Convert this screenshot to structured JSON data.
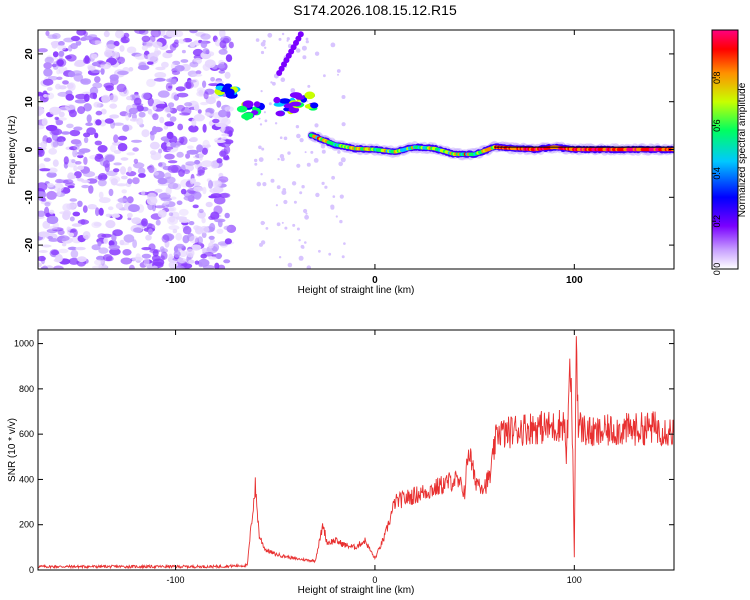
{
  "title": "S174.2026.108.15.12.R15",
  "chart_data": [
    {
      "type": "heatmap",
      "xlabel": "Height of straight line (km)",
      "ylabel": "Frequency (Hz)",
      "xlim": [
        -169,
        150
      ],
      "ylim": [
        -25,
        25
      ],
      "x_ticks": [
        -100,
        0,
        100
      ],
      "y_ticks": [
        -20,
        -10,
        0,
        10,
        20
      ],
      "colorbar": {
        "label": "Normalized spectral amplitude",
        "range": [
          0,
          1
        ],
        "ticks": [
          0.0,
          0.2,
          0.4,
          0.6,
          0.8
        ],
        "colors": [
          "#ffffff",
          "#c8a0ff",
          "#7a00ff",
          "#0000ff",
          "#00c8ff",
          "#00ff60",
          "#c8ff00",
          "#ff9000",
          "#ff0000",
          "#ff0080"
        ]
      },
      "features": {
        "noise_region_x": [
          -169,
          -72
        ],
        "dominant_track": [
          [
            -32,
            3
          ],
          [
            -20,
            1
          ],
          [
            -10,
            0.2
          ],
          [
            0,
            0
          ],
          [
            10,
            -0.5
          ],
          [
            20,
            0.5
          ],
          [
            30,
            0.2
          ],
          [
            40,
            -1
          ],
          [
            50,
            -1
          ],
          [
            60,
            0.5
          ],
          [
            80,
            0
          ],
          [
            90,
            0.5
          ],
          [
            100,
            0
          ],
          [
            150,
            0
          ]
        ],
        "high_freq_cluster": [
          [
            -75,
            12
          ],
          [
            -62,
            8
          ],
          [
            -45,
            9
          ],
          [
            -35,
            10
          ]
        ]
      }
    },
    {
      "type": "line",
      "xlabel": "Height of straight line (km)",
      "ylabel": "SNR (10 * v/v)",
      "xlim": [
        -169,
        150
      ],
      "ylim": [
        0,
        1060
      ],
      "x_ticks": [
        -100,
        0,
        100
      ],
      "y_ticks": [
        0,
        200,
        400,
        600,
        800,
        1000
      ],
      "series": [
        {
          "name": "SNR",
          "color": "#e83030",
          "x": [
            -169,
            -140,
            -110,
            -80,
            -64,
            -62,
            -60,
            -58,
            -55,
            -50,
            -45,
            -40,
            -30,
            -26,
            -24,
            -20,
            -15,
            -10,
            -5,
            0,
            5,
            10,
            20,
            30,
            40,
            45,
            47,
            50,
            55,
            58,
            60,
            62,
            65,
            70,
            80,
            90,
            95,
            96,
            98,
            99,
            100,
            101,
            102,
            105,
            110,
            120,
            130,
            140,
            150
          ],
          "values": [
            15,
            15,
            15,
            15,
            20,
            200,
            370,
            150,
            90,
            70,
            60,
            50,
            40,
            200,
            120,
            130,
            110,
            100,
            130,
            50,
            150,
            300,
            330,
            360,
            400,
            350,
            540,
            400,
            370,
            420,
            550,
            620,
            600,
            620,
            630,
            630,
            650,
            500,
            900,
            620,
            60,
            1050,
            640,
            620,
            600,
            620,
            620,
            630,
            610
          ]
        }
      ]
    }
  ]
}
